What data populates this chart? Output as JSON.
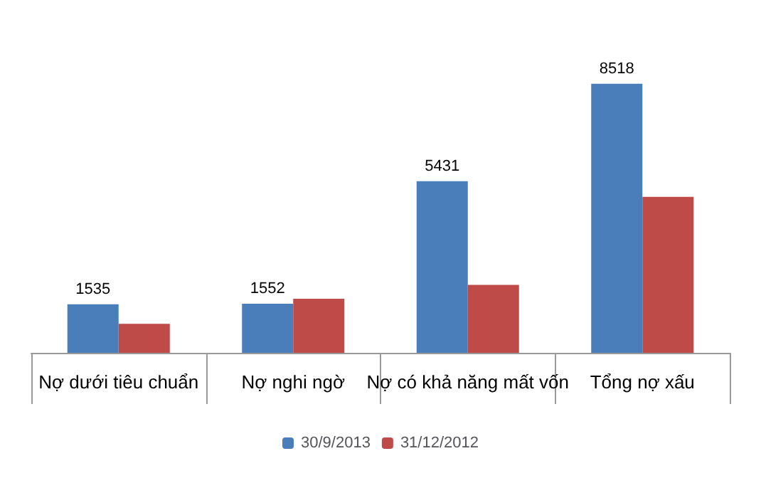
{
  "chart_data": {
    "type": "bar",
    "categories": [
      "Nợ dưới tiêu chuẩn",
      "Nợ nghi ngờ",
      "Nợ có khả năng mất vốn",
      "Tổng nợ xấu"
    ],
    "series": [
      {
        "name": "30/9/2013",
        "color": "#4a7ebb",
        "values": [
          1535,
          1552,
          5431,
          8518
        ],
        "value_labels": [
          "1535",
          "1552",
          "5431",
          "8518"
        ]
      },
      {
        "name": "31/12/2012",
        "color": "#be4b48",
        "values": [
          920,
          1710,
          2150,
          4940
        ]
      }
    ],
    "legend": "bottom",
    "grid": false
  }
}
